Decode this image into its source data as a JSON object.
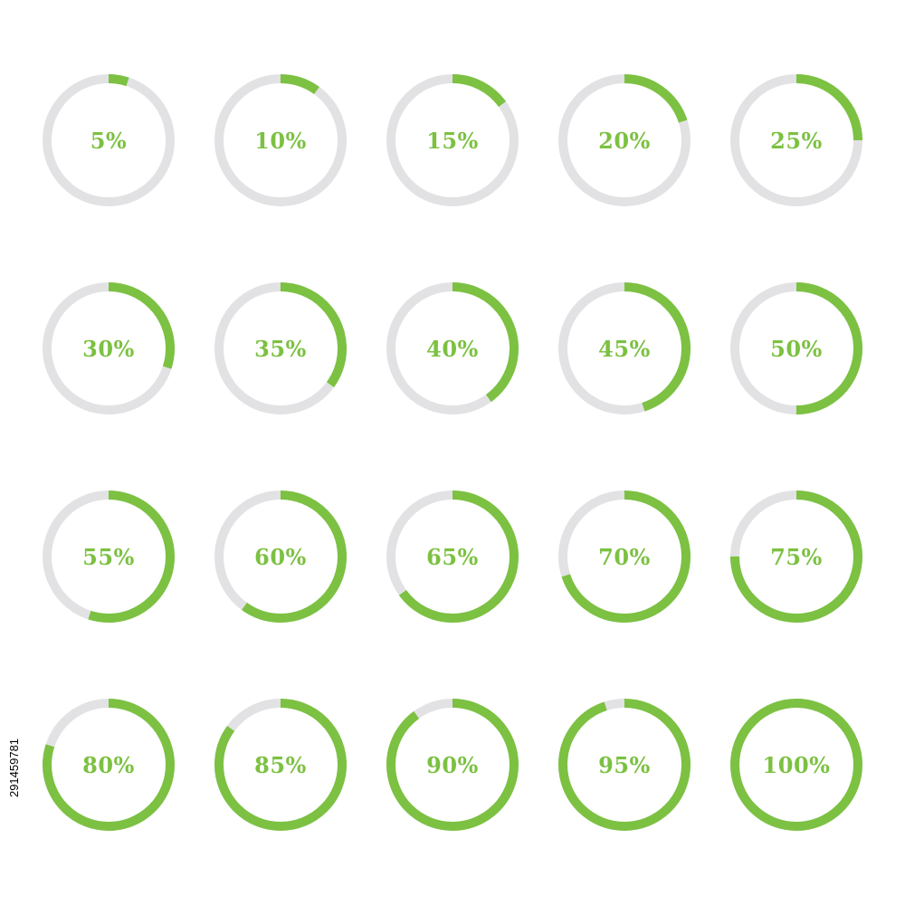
{
  "colors": {
    "progress": "#7cc142",
    "track": "#e2e2e4",
    "label": "#7cc142",
    "background": "#ffffff"
  },
  "stock_id": "291459781",
  "rings": [
    {
      "label": "5%",
      "value": 5
    },
    {
      "label": "10%",
      "value": 10
    },
    {
      "label": "15%",
      "value": 15
    },
    {
      "label": "20%",
      "value": 20
    },
    {
      "label": "25%",
      "value": 25
    },
    {
      "label": "30%",
      "value": 30
    },
    {
      "label": "35%",
      "value": 35
    },
    {
      "label": "40%",
      "value": 40
    },
    {
      "label": "45%",
      "value": 45
    },
    {
      "label": "50%",
      "value": 50
    },
    {
      "label": "55%",
      "value": 55
    },
    {
      "label": "60%",
      "value": 60
    },
    {
      "label": "65%",
      "value": 65
    },
    {
      "label": "70%",
      "value": 70
    },
    {
      "label": "75%",
      "value": 75
    },
    {
      "label": "80%",
      "value": 80
    },
    {
      "label": "85%",
      "value": 85
    },
    {
      "label": "90%",
      "value": 90
    },
    {
      "label": "95%",
      "value": 95
    },
    {
      "label": "100%",
      "value": 100
    }
  ]
}
